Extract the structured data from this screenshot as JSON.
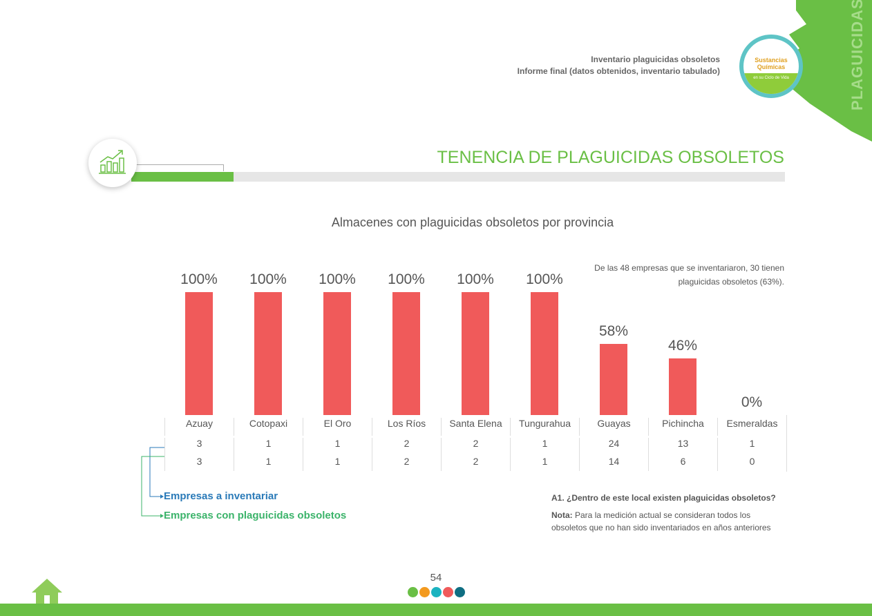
{
  "header": {
    "line1": "Inventario plaguicidas obsoletos",
    "line2": "Informe final (datos obtenidos, inventario tabulado)",
    "section_tab": "PLAGUICIDAS",
    "logo_text": "Sustancias Químicas",
    "logo_sub": "en su Ciclo de Vida"
  },
  "section_title": "TENENCIA DE PLAGUICIDAS OBSOLETOS",
  "chart_data": {
    "type": "bar",
    "title": "Almacenes con plaguicidas obsoletos por provincia",
    "categories": [
      "Azuay",
      "Cotopaxi",
      "El Oro",
      "Los Ríos",
      "Santa Elena",
      "Tungurahua",
      "Guayas",
      "Pichincha",
      "Esmeraldas"
    ],
    "values": [
      100,
      100,
      100,
      100,
      100,
      100,
      58,
      46,
      0
    ],
    "labels": [
      "100%",
      "100%",
      "100%",
      "100%",
      "100%",
      "100%",
      "58%",
      "46%",
      "0%"
    ],
    "ylim": [
      0,
      100
    ],
    "bar_color": "#f05a5a",
    "table": [
      {
        "name": "Empresas a inventariar",
        "values": [
          "3",
          "1",
          "1",
          "2",
          "2",
          "1",
          "24",
          "13",
          "1"
        ]
      },
      {
        "name": "Empresas con plaguicidas obsoletos",
        "values": [
          "3",
          "1",
          "1",
          "2",
          "2",
          "1",
          "14",
          "6",
          "0"
        ]
      }
    ]
  },
  "annotation": {
    "line1": "De las 48 empresas que se inventariaron, 30 tienen",
    "line2": "plaguicidas obsoletos (63%)."
  },
  "legend": {
    "a": "Empresas a inventariar",
    "b": "Empresas con plaguicidas obsoletos"
  },
  "question": "A1. ¿Dentro de este local existen plaguicidas obsoletos?",
  "nota_label": "Nota:",
  "nota_text": " Para la medición actual se consideran todos los obsoletos que no han sido inventariados en años anteriores",
  "page_number": "54",
  "colors": {
    "green": "#6abf45",
    "dots": [
      "#6abf45",
      "#f39a1f",
      "#1bb3c0",
      "#f05a5a",
      "#0f6e82"
    ]
  }
}
